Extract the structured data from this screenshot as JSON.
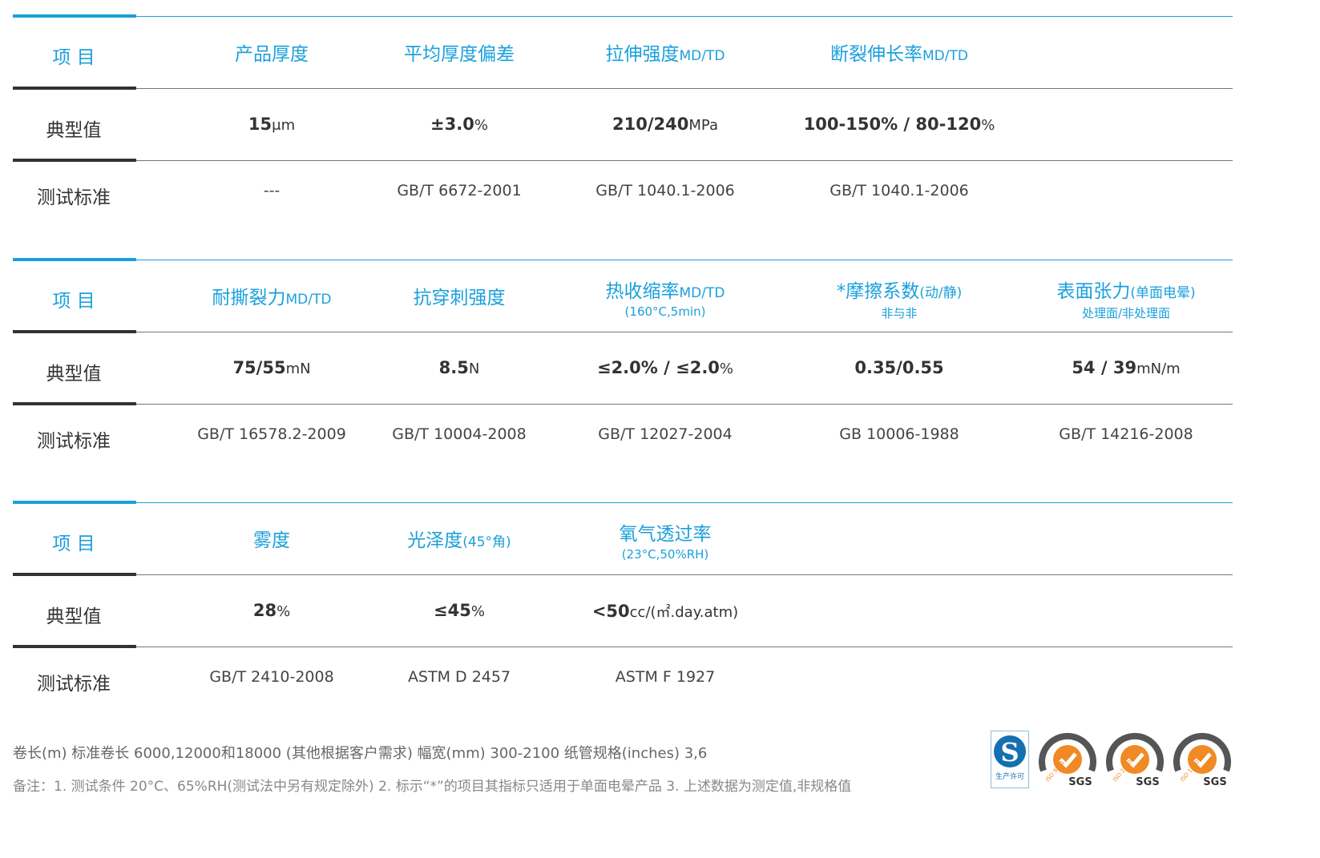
{
  "colors": {
    "accent": "#1aa0dc",
    "dark": "#333333",
    "rule": "#555555"
  },
  "row_labels": {
    "item": "项 目",
    "typical": "典型值",
    "standard": "测试标准"
  },
  "tables": [
    {
      "columns": [
        {
          "header": "产品厚度",
          "header_unit": "",
          "sub": "",
          "value": "15",
          "unit": "μm",
          "standard": "---"
        },
        {
          "header": "平均厚度偏差",
          "header_unit": "",
          "sub": "",
          "value": "±3.0",
          "unit": "%",
          "standard": "GB/T 6672-2001"
        },
        {
          "header": "拉伸强度",
          "header_unit": "MD/TD",
          "sub": "",
          "value": "210/240",
          "unit": "MPa",
          "standard": "GB/T 1040.1-2006"
        },
        {
          "header": "断裂伸长率",
          "header_unit": "MD/TD",
          "sub": "",
          "value": "100-150% / 80-120",
          "unit": "%",
          "standard": "GB/T 1040.1-2006"
        }
      ]
    },
    {
      "columns": [
        {
          "header": "耐撕裂力",
          "header_unit": "MD/TD",
          "sub": "",
          "value": "75/55",
          "unit": "mN",
          "standard": "GB/T 16578.2-2009"
        },
        {
          "header": "抗穿刺强度",
          "header_unit": "",
          "sub": "",
          "value": "8.5",
          "unit": "N",
          "standard": "GB/T 10004-2008"
        },
        {
          "header": "热收缩率",
          "header_unit": "MD/TD",
          "sub": "(160°C,5min)",
          "value": "≤2.0% / ≤2.0",
          "unit": "%",
          "standard": "GB/T 12027-2004"
        },
        {
          "header": "*摩擦系数",
          "header_unit": "(动/静)",
          "sub": "非与非",
          "value": "0.35/0.55",
          "unit": "",
          "standard": "GB 10006-1988"
        },
        {
          "header": "表面张力",
          "header_unit": "(单面电晕)",
          "sub": "处理面/非处理面",
          "value": "54 / 39",
          "unit": "mN/m",
          "standard": "GB/T 14216-2008"
        }
      ]
    },
    {
      "columns": [
        {
          "header": "雾度",
          "header_unit": "",
          "sub": "",
          "value": "28",
          "unit": "%",
          "standard": "GB/T 2410-2008"
        },
        {
          "header": "光泽度",
          "header_unit": "(45°角)",
          "sub": "",
          "value": "≤45",
          "unit": "%",
          "standard": "ASTM D 2457"
        },
        {
          "header": "氧气透过率",
          "header_unit": "",
          "sub": "(23°C,50%RH)",
          "value": "<50",
          "unit": "cc/(㎡.day.atm)",
          "standard": "ASTM F 1927"
        }
      ]
    }
  ],
  "footer": {
    "line1": "卷长(m) 标准卷长 6000,12000和18000 (其他根据客户需求)      幅宽(mm) 300-2100      纸管规格(inches)  3,6",
    "line2": "备注：1. 测试条件 20°C、65%RH(测试法中另有规定除外) 2. 标示“*”的项目其指标只适用于单面电晕产品    3. 上述数据为测定值,非规格值"
  },
  "logos": [
    {
      "name": "生产许可",
      "text": "生产许可"
    },
    {
      "name": "ISO 9001",
      "text": "SGS"
    },
    {
      "name": "ISO 22000",
      "text": "SGS"
    },
    {
      "name": "ISO 14001",
      "text": "SGS"
    }
  ]
}
